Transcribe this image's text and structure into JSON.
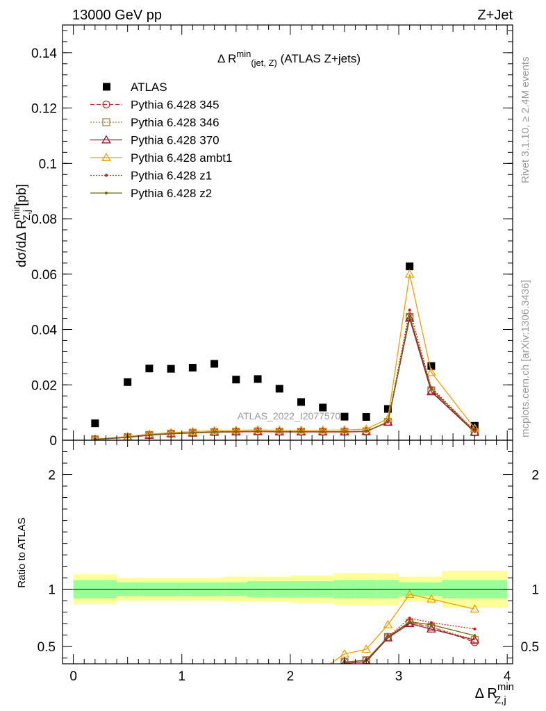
{
  "header": {
    "left": "13000 GeV pp",
    "right": "Z+Jet"
  },
  "side_labels": {
    "rivet": "Rivet 3.1.10, ≥ 2.4M events",
    "mcplots": "mcplots.cern.ch [arXiv:1306.3436]"
  },
  "chart_data": [
    {
      "type": "scatter",
      "title": "Δ R^min(jet, Z) (ATLAS Z+jets)",
      "title_parts": {
        "pre": "Δ R",
        "sup": "min",
        "sub": "(jet, Z)",
        "post": " (ATLAS Z+jets)"
      },
      "ylabel": "dσ/dΔ R^min_Z,j [pb]",
      "ylabel_parts": {
        "pre": "dσ/dΔ R",
        "sup": "min",
        "sub": "Z,j",
        "post": " [pb]"
      },
      "watermark": "ATLAS_2022_I2077570",
      "xlim": [
        -0.1,
        4.05
      ],
      "ylim": [
        0,
        0.15
      ],
      "y_ticks": [
        0,
        0.02,
        0.04,
        0.06,
        0.08,
        0.1,
        0.12,
        0.14
      ],
      "y_tick_labels": [
        "0",
        "0.02",
        "0.04",
        "0.06",
        "0.08",
        "0.1",
        "0.12",
        "0.14"
      ],
      "legend_position": "top-left",
      "x": [
        0.2,
        0.5,
        0.7,
        0.9,
        1.1,
        1.3,
        1.5,
        1.7,
        1.9,
        2.1,
        2.3,
        2.5,
        2.7,
        2.9,
        3.1,
        3.3,
        3.7
      ],
      "x_err": [
        0.2,
        0.1,
        0.1,
        0.1,
        0.1,
        0.1,
        0.1,
        0.1,
        0.1,
        0.1,
        0.1,
        0.1,
        0.1,
        0.1,
        0.1,
        0.1,
        0.3
      ],
      "series": [
        {
          "name": "ATLAS",
          "style": "data",
          "color": "#000000",
          "values": [
            0.0061,
            0.021,
            0.0259,
            0.0258,
            0.0262,
            0.0276,
            0.0219,
            0.0221,
            0.0186,
            0.0138,
            0.0118,
            0.0085,
            0.0084,
            0.0113,
            0.0628,
            0.0268,
            0.0052
          ]
        },
        {
          "name": "Pythia 6.428 345",
          "color": "#c0302b",
          "marker": "circle",
          "dash": "6,3",
          "values": [
            0.0003,
            0.0011,
            0.0019,
            0.0024,
            0.0027,
            0.003,
            0.0031,
            0.0032,
            0.0031,
            0.0031,
            0.0031,
            0.0031,
            0.0032,
            0.0066,
            0.0445,
            0.018,
            0.0028
          ]
        },
        {
          "name": "Pythia 6.428 346",
          "color": "#a0783c",
          "marker": "square",
          "dash": "2,2",
          "values": [
            0.0003,
            0.0011,
            0.0019,
            0.0024,
            0.0027,
            0.003,
            0.0031,
            0.0032,
            0.0031,
            0.0031,
            0.0031,
            0.0031,
            0.0032,
            0.0066,
            0.0445,
            0.018,
            0.0029
          ]
        },
        {
          "name": "Pythia 6.428 370",
          "color": "#a0142b",
          "marker": "triangle",
          "dash": "",
          "values": [
            0.0003,
            0.001,
            0.0018,
            0.0023,
            0.0026,
            0.0029,
            0.003,
            0.0031,
            0.003,
            0.003,
            0.003,
            0.003,
            0.0031,
            0.0065,
            0.044,
            0.0175,
            0.0029
          ]
        },
        {
          "name": "Pythia 6.428 ambt1",
          "color": "#f0a000",
          "marker": "triangle",
          "dash": "",
          "values": [
            0.0004,
            0.0013,
            0.0022,
            0.0027,
            0.0031,
            0.0034,
            0.0036,
            0.0037,
            0.0036,
            0.0036,
            0.0036,
            0.0037,
            0.004,
            0.0078,
            0.06,
            0.0245,
            0.0043
          ]
        },
        {
          "name": "Pythia 6.428 z1",
          "color": "#d01818",
          "marker": "dot",
          "dash": "2,2",
          "values": [
            0.0003,
            0.0011,
            0.0019,
            0.0024,
            0.0027,
            0.003,
            0.0031,
            0.0032,
            0.0031,
            0.0031,
            0.0031,
            0.0031,
            0.0032,
            0.0066,
            0.047,
            0.019,
            0.0034
          ]
        },
        {
          "name": "Pythia 6.428 z2",
          "color": "#6b6b10",
          "marker": "dot",
          "dash": "",
          "values": [
            0.0003,
            0.0011,
            0.0019,
            0.0024,
            0.0027,
            0.003,
            0.0031,
            0.0032,
            0.0031,
            0.0031,
            0.0031,
            0.0031,
            0.0032,
            0.0066,
            0.045,
            0.0185,
            0.0031
          ]
        }
      ]
    },
    {
      "type": "line",
      "ylabel": "Ratio to ATLAS",
      "xlabel": "Δ R^min_Z,j",
      "xlabel_parts": {
        "pre": "Δ R",
        "sup": "min",
        "sub": "Z,j"
      },
      "xlim": [
        -0.1,
        4.05
      ],
      "ylim": [
        0.35,
        2.3
      ],
      "x_ticks": [
        0,
        1,
        2,
        3,
        4
      ],
      "x_tick_labels": [
        "0",
        "1",
        "2",
        "3",
        "4"
      ],
      "y_ticks": [
        0.5,
        1,
        2
      ],
      "y_tick_labels": [
        "0.5",
        "1",
        "2"
      ],
      "reference_line": 1,
      "bands": {
        "edges": [
          0.0,
          0.4,
          0.6,
          0.8,
          1.0,
          1.2,
          1.4,
          1.6,
          1.8,
          2.0,
          2.2,
          2.4,
          2.6,
          2.8,
          3.0,
          3.2,
          3.4,
          4.0
        ],
        "green": [
          [
            0.92,
            1.08
          ],
          [
            0.94,
            1.06
          ],
          [
            0.94,
            1.06
          ],
          [
            0.94,
            1.06
          ],
          [
            0.94,
            1.06
          ],
          [
            0.94,
            1.06
          ],
          [
            0.94,
            1.06
          ],
          [
            0.93,
            1.07
          ],
          [
            0.93,
            1.07
          ],
          [
            0.93,
            1.07
          ],
          [
            0.93,
            1.07
          ],
          [
            0.92,
            1.08
          ],
          [
            0.92,
            1.08
          ],
          [
            0.92,
            1.08
          ],
          [
            0.94,
            1.06
          ],
          [
            0.94,
            1.06
          ],
          [
            0.92,
            1.08
          ]
        ],
        "yellow": [
          [
            0.87,
            1.13
          ],
          [
            0.9,
            1.1
          ],
          [
            0.9,
            1.1
          ],
          [
            0.9,
            1.1
          ],
          [
            0.9,
            1.1
          ],
          [
            0.9,
            1.1
          ],
          [
            0.89,
            1.11
          ],
          [
            0.89,
            1.11
          ],
          [
            0.89,
            1.11
          ],
          [
            0.88,
            1.12
          ],
          [
            0.88,
            1.12
          ],
          [
            0.86,
            1.14
          ],
          [
            0.86,
            1.14
          ],
          [
            0.86,
            1.14
          ],
          [
            0.89,
            1.11
          ],
          [
            0.89,
            1.11
          ],
          [
            0.84,
            1.16
          ]
        ],
        "green_color": "#99ff99",
        "yellow_color": "#ffff99"
      }
    }
  ]
}
